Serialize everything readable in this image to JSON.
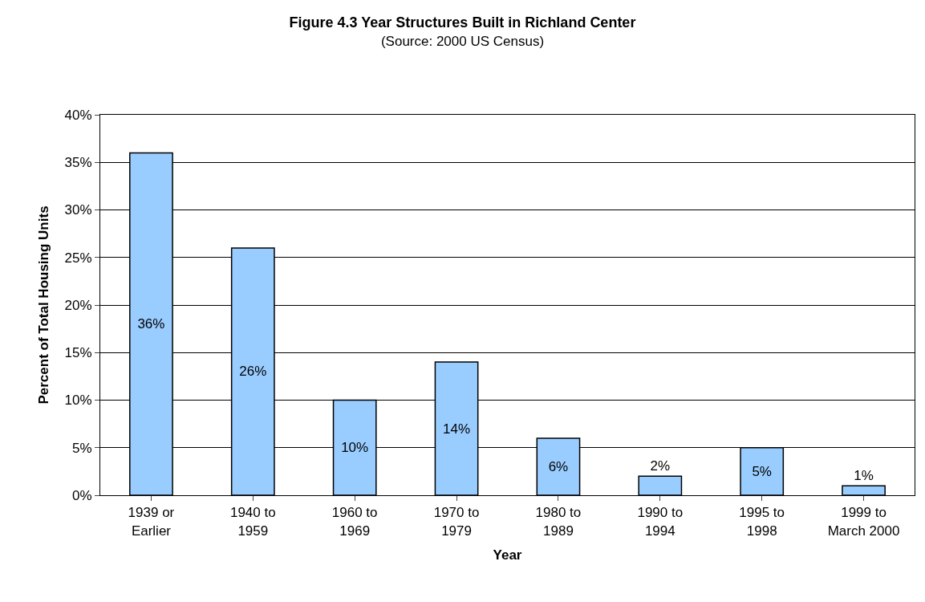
{
  "chart_data": {
    "type": "bar",
    "title": "Figure 4.3 Year Structures Built in Richland Center",
    "subtitle": "(Source: 2000 US Census)",
    "xlabel": "Year",
    "ylabel": "Percent of Total Housing Units",
    "categories": [
      "1939 or\nEarlier",
      "1940 to\n1959",
      "1960 to\n1969",
      "1970 to\n1979",
      "1980 to\n1989",
      "1990 to\n1994",
      "1995 to\n1998",
      "1999 to\nMarch 2000"
    ],
    "values": [
      36,
      26,
      10,
      14,
      6,
      2,
      5,
      1
    ],
    "value_labels": [
      "36%",
      "26%",
      "10%",
      "14%",
      "6%",
      "2%",
      "5%",
      "1%"
    ],
    "color": "#99ccff",
    "ylim": [
      0,
      40
    ],
    "yticks": [
      {
        "value": 0,
        "label": "0%"
      },
      {
        "value": 5,
        "label": "5%"
      },
      {
        "value": 10,
        "label": "10%"
      },
      {
        "value": 15,
        "label": "15%"
      },
      {
        "value": 20,
        "label": "20%"
      },
      {
        "value": 25,
        "label": "25%"
      },
      {
        "value": 30,
        "label": "30%"
      },
      {
        "value": 35,
        "label": "35%"
      },
      {
        "value": 40,
        "label": "40%"
      }
    ],
    "grid": "y",
    "legend": false
  }
}
